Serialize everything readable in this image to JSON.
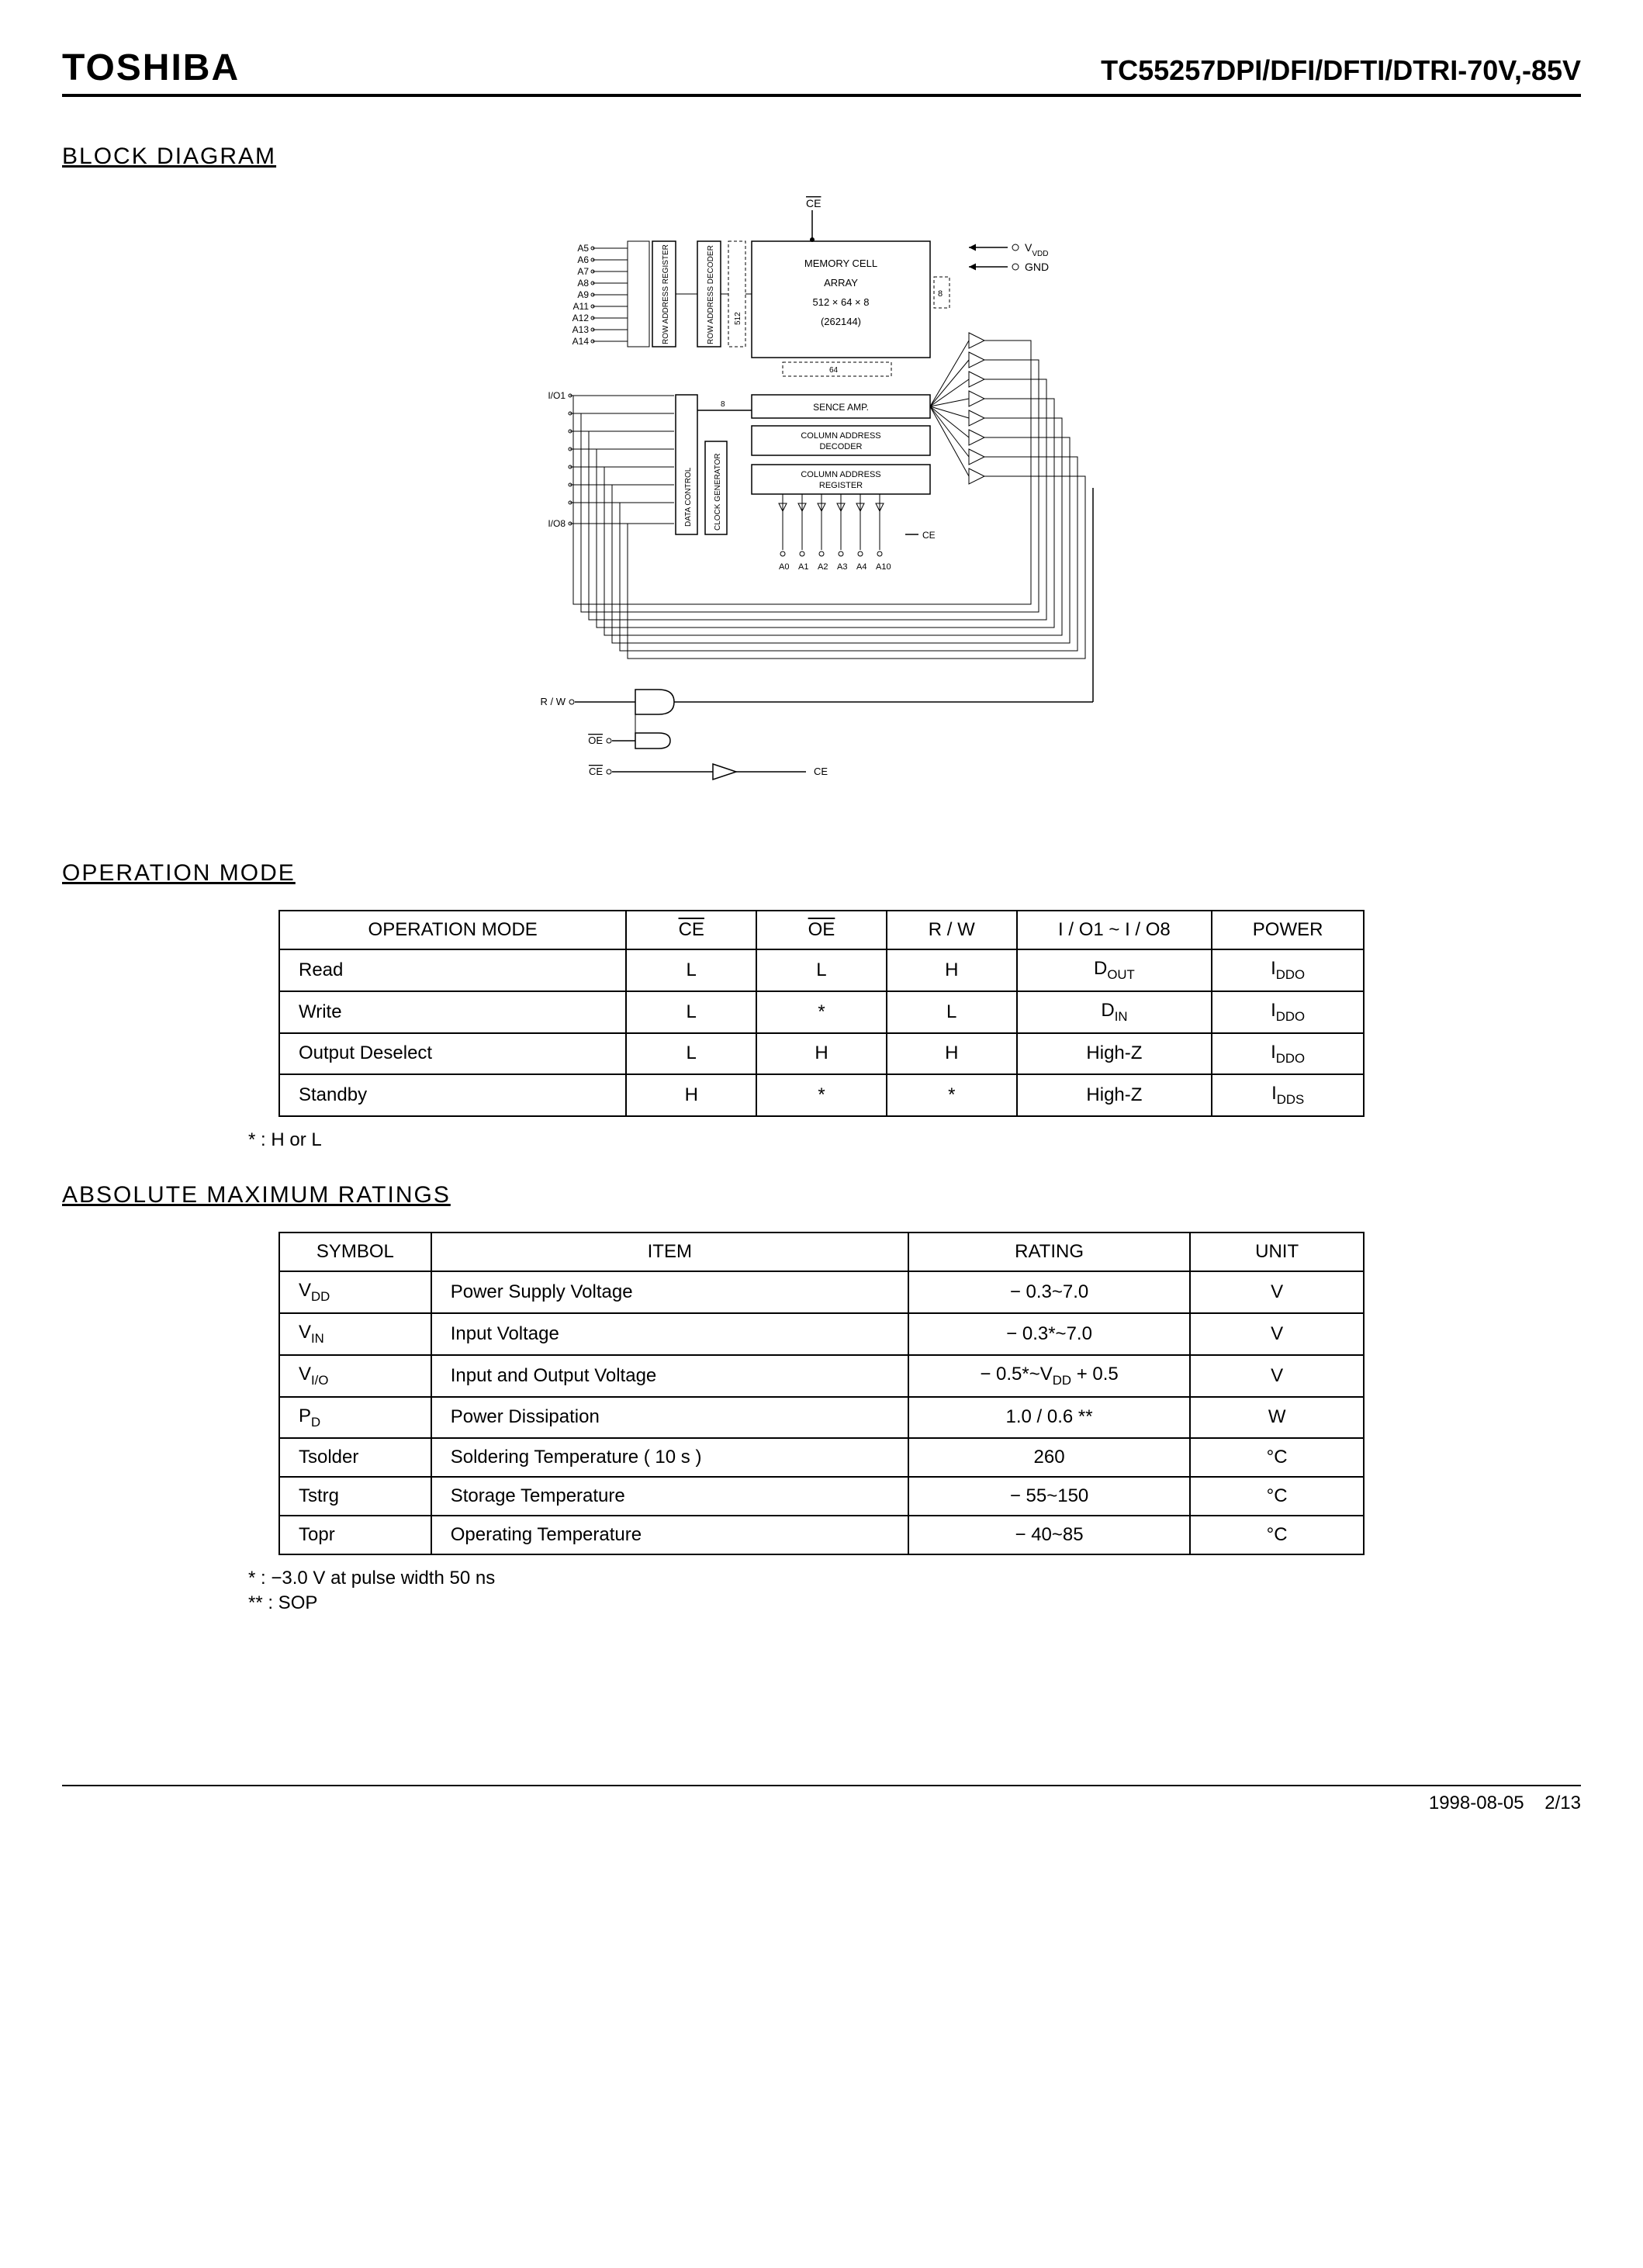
{
  "header": {
    "brand": "TOSHIBA",
    "partno": "TC55257DPI/DFI/DFTI/DTRI-70V,-85V"
  },
  "sections": {
    "block_diagram": "BLOCK DIAGRAM",
    "operation_mode": "OPERATION MODE",
    "amr": "ABSOLUTE MAXIMUM RATINGS"
  },
  "diagram": {
    "type": "block-diagram",
    "colors": {
      "line": "#000000",
      "bg": "#ffffff",
      "text": "#000000"
    },
    "address_row_pins": [
      "A5",
      "A6",
      "A7",
      "A8",
      "A9",
      "A11",
      "A12",
      "A13",
      "A14"
    ],
    "io_top": "I/O1",
    "io_bottom": "I/O8",
    "col_addr_pins": [
      "A0",
      "A1",
      "A2",
      "A3",
      "A4",
      "A10"
    ],
    "blocks": {
      "row_addr_reg": "ROW ADDRESS REGISTER",
      "row_addr_dec": "ROW ADDRESS DECODER",
      "mem_array_l1": "MEMORY CELL",
      "mem_array_l2": "ARRAY",
      "mem_array_l3": "512 × 64 × 8",
      "mem_array_l4": "(262144)",
      "sense_amp": "SENCE AMP.",
      "col_dec_l1": "COLUMN ADDRESS",
      "col_dec_l2": "DECODER",
      "col_reg_l1": "COLUMN ADDRESS",
      "col_reg_l2": "REGISTER",
      "data_control": "DATA CONTROL",
      "clock_gen": "CLOCK GENERATOR",
      "dim_512": "512",
      "dim_64": "64",
      "dim_8": "8"
    },
    "signals": {
      "vdd": "VDD",
      "gnd": "GND",
      "rw": "R / W",
      "oe": "OE",
      "ce": "CE",
      "ce_top": "CE",
      "ce_out": "CE"
    }
  },
  "op_mode_table": {
    "headers": [
      "OPERATION MODE",
      "CE",
      "OE",
      "R / W",
      "I / O1 ~ I / O8",
      "POWER"
    ],
    "ce_overline": true,
    "oe_overline": true,
    "rows": [
      {
        "mode": "Read",
        "ce": "L",
        "oe": "L",
        "rw": "H",
        "io": "D",
        "io_sub": "OUT",
        "power": "I",
        "power_sub": "DDO"
      },
      {
        "mode": "Write",
        "ce": "L",
        "oe": "*",
        "rw": "L",
        "io": "D",
        "io_sub": "IN",
        "power": "I",
        "power_sub": "DDO"
      },
      {
        "mode": "Output Deselect",
        "ce": "L",
        "oe": "H",
        "rw": "H",
        "io": "High-Z",
        "io_sub": "",
        "power": "I",
        "power_sub": "DDO"
      },
      {
        "mode": "Standby",
        "ce": "H",
        "oe": "*",
        "rw": "*",
        "io": "High-Z",
        "io_sub": "",
        "power": "I",
        "power_sub": "DDS"
      }
    ],
    "footnote": "*  :   H or L"
  },
  "amr_table": {
    "headers": [
      "SYMBOL",
      "ITEM",
      "RATING",
      "UNIT"
    ],
    "rows": [
      {
        "sym": "V",
        "sym_sub": "DD",
        "item": "Power Supply Voltage",
        "rating": "− 0.3~7.0",
        "unit": "V"
      },
      {
        "sym": "V",
        "sym_sub": "IN",
        "item": "Input Voltage",
        "rating": "− 0.3*~7.0",
        "unit": "V"
      },
      {
        "sym": "V",
        "sym_sub": "I/O",
        "item": "Input and Output Voltage",
        "rating": "− 0.5*~VDD + 0.5",
        "unit": "V"
      },
      {
        "sym": "P",
        "sym_sub": "D",
        "item": "Power Dissipation",
        "rating": "1.0 / 0.6 **",
        "unit": "W"
      },
      {
        "sym": "Tsolder",
        "sym_sub": "",
        "item": "Soldering Temperature ( 10 s )",
        "rating": "260",
        "unit": "°C"
      },
      {
        "sym": "Tstrg",
        "sym_sub": "",
        "item": "Storage Temperature",
        "rating": "− 55~150",
        "unit": "°C"
      },
      {
        "sym": "Topr",
        "sym_sub": "",
        "item": "Operating Temperature",
        "rating": "− 40~85",
        "unit": "°C"
      }
    ],
    "footnote1": "*  :   −3.0 V at pulse width 50 ns",
    "footnote2": "**  :   SOP"
  },
  "footer": {
    "date": "1998-08-05",
    "page": "2/13"
  }
}
